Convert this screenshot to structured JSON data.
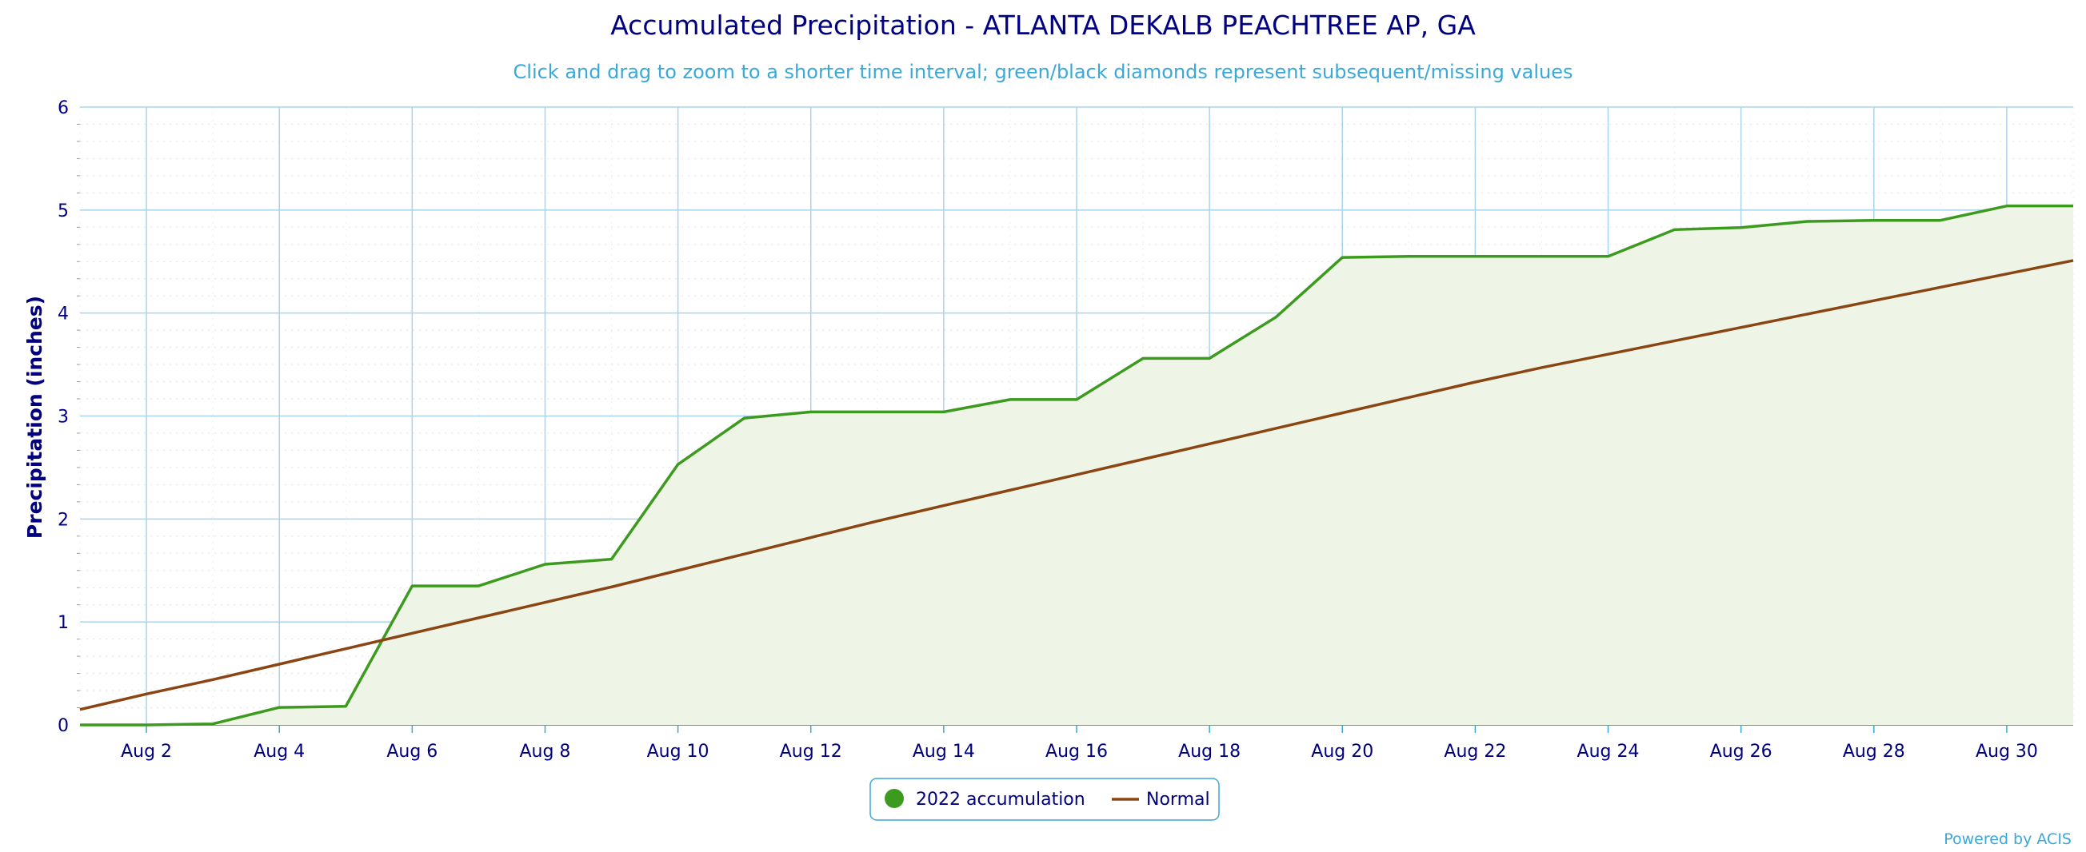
{
  "chart_data": {
    "type": "area",
    "title": "Accumulated Precipitation - ATLANTA DEKALB PEACHTREE AP, GA",
    "subtitle": "Click and drag to zoom to a shorter time interval; green/black diamonds represent subsequent/missing values",
    "ylabel": "Precipitation (inches)",
    "xlabel": "",
    "x_range": [
      "2022-08-01",
      "2022-08-31"
    ],
    "ylim": [
      0,
      6
    ],
    "y_ticks": [
      0,
      1,
      2,
      3,
      4,
      5,
      6
    ],
    "x_tick_labels": [
      "Aug 2",
      "Aug 4",
      "Aug 6",
      "Aug 8",
      "Aug 10",
      "Aug 12",
      "Aug 14",
      "Aug 16",
      "Aug 18",
      "Aug 20",
      "Aug 22",
      "Aug 24",
      "Aug 26",
      "Aug 28",
      "Aug 30"
    ],
    "x_tick_dates": [
      "2022-08-02",
      "2022-08-04",
      "2022-08-06",
      "2022-08-08",
      "2022-08-10",
      "2022-08-12",
      "2022-08-14",
      "2022-08-16",
      "2022-08-18",
      "2022-08-20",
      "2022-08-22",
      "2022-08-24",
      "2022-08-26",
      "2022-08-28",
      "2022-08-30"
    ],
    "grid": true,
    "legend_position": "bottom-center",
    "series": [
      {
        "name": "2022 accumulation",
        "type": "area",
        "color": "#3c9a1f",
        "fill_color": "#eef5e6",
        "x": [
          "2022-08-01",
          "2022-08-02",
          "2022-08-03",
          "2022-08-04",
          "2022-08-05",
          "2022-08-06",
          "2022-08-07",
          "2022-08-08",
          "2022-08-09",
          "2022-08-10",
          "2022-08-11",
          "2022-08-12",
          "2022-08-13",
          "2022-08-14",
          "2022-08-15",
          "2022-08-16",
          "2022-08-17",
          "2022-08-18",
          "2022-08-19",
          "2022-08-20",
          "2022-08-21",
          "2022-08-22",
          "2022-08-23",
          "2022-08-24",
          "2022-08-25",
          "2022-08-26",
          "2022-08-27",
          "2022-08-28",
          "2022-08-29",
          "2022-08-30",
          "2022-08-31"
        ],
        "values": [
          0.0,
          0.0,
          0.01,
          0.17,
          0.18,
          1.35,
          1.35,
          1.56,
          1.61,
          2.53,
          2.98,
          3.04,
          3.04,
          3.04,
          3.16,
          3.16,
          3.56,
          3.56,
          3.96,
          4.54,
          4.55,
          4.55,
          4.55,
          4.55,
          4.81,
          4.83,
          4.89,
          4.9,
          4.9,
          5.04,
          5.04
        ]
      },
      {
        "name": "Normal",
        "type": "line",
        "color": "#8b4513",
        "x": [
          "2022-08-01",
          "2022-08-02",
          "2022-08-03",
          "2022-08-04",
          "2022-08-05",
          "2022-08-06",
          "2022-08-07",
          "2022-08-08",
          "2022-08-09",
          "2022-08-10",
          "2022-08-11",
          "2022-08-12",
          "2022-08-13",
          "2022-08-14",
          "2022-08-15",
          "2022-08-16",
          "2022-08-17",
          "2022-08-18",
          "2022-08-19",
          "2022-08-20",
          "2022-08-21",
          "2022-08-22",
          "2022-08-23",
          "2022-08-24",
          "2022-08-25",
          "2022-08-26",
          "2022-08-27",
          "2022-08-28",
          "2022-08-29",
          "2022-08-30",
          "2022-08-31"
        ],
        "values": [
          0.15,
          0.3,
          0.44,
          0.59,
          0.74,
          0.89,
          1.04,
          1.19,
          1.34,
          1.5,
          1.66,
          1.82,
          1.98,
          2.13,
          2.28,
          2.43,
          2.58,
          2.73,
          2.88,
          3.03,
          3.18,
          3.33,
          3.47,
          3.6,
          3.73,
          3.86,
          3.99,
          4.12,
          4.25,
          4.38,
          4.51
        ]
      }
    ]
  },
  "legend": {
    "items": [
      {
        "label": "2022 accumulation",
        "color": "#3c9a1f"
      },
      {
        "label": "Normal",
        "color": "#8b4513"
      }
    ]
  },
  "credits": "Powered by ACIS",
  "colors": {
    "gridline": "#a8d4ee",
    "axis_line": "#3aa8d8",
    "text": "#000080",
    "accent": "#3aa8d8"
  }
}
